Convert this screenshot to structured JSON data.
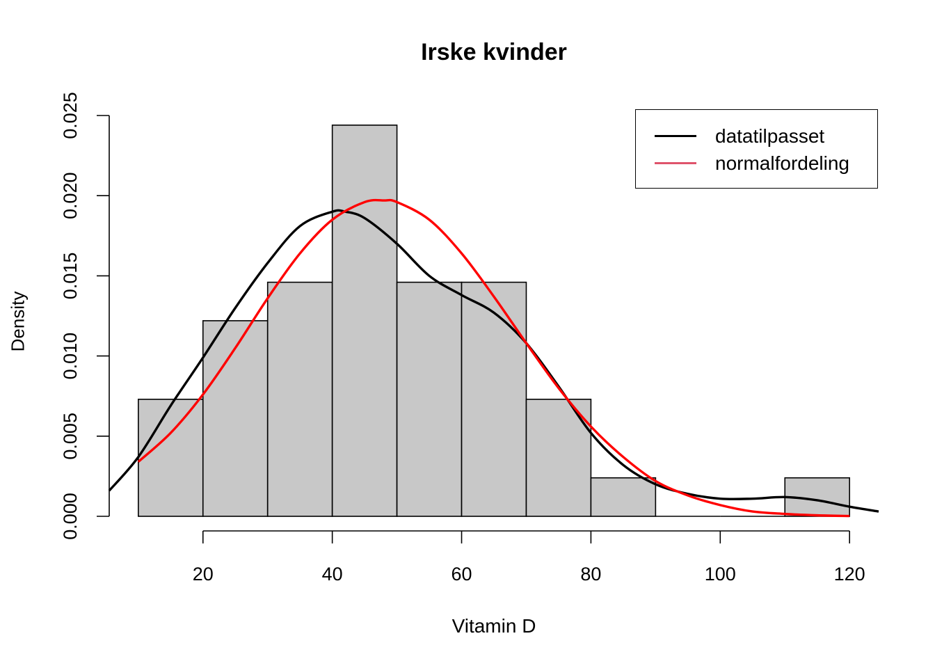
{
  "chart_data": {
    "type": "histogram",
    "title": "Irske kvinder",
    "xlabel": "Vitamin D",
    "ylabel": "Density",
    "xlim": [
      5.5,
      124.5
    ],
    "ylim": [
      0,
      0.025
    ],
    "x_ticks": [
      20,
      40,
      60,
      80,
      100,
      120
    ],
    "y_ticks": [
      "0.000",
      "0.005",
      "0.010",
      "0.015",
      "0.020",
      "0.025"
    ],
    "bins": [
      {
        "from": 10,
        "to": 20,
        "density": 0.0073
      },
      {
        "from": 20,
        "to": 30,
        "density": 0.0122
      },
      {
        "from": 30,
        "to": 40,
        "density": 0.0146
      },
      {
        "from": 40,
        "to": 50,
        "density": 0.0244
      },
      {
        "from": 50,
        "to": 60,
        "density": 0.0146
      },
      {
        "from": 60,
        "to": 70,
        "density": 0.0146
      },
      {
        "from": 70,
        "to": 80,
        "density": 0.0073
      },
      {
        "from": 80,
        "to": 90,
        "density": 0.0024
      },
      {
        "from": 90,
        "to": 100,
        "density": 0
      },
      {
        "from": 100,
        "to": 110,
        "density": 0
      },
      {
        "from": 110,
        "to": 120,
        "density": 0.0024
      }
    ],
    "bar_color": "#C8C8C8",
    "series": [
      {
        "name": "datatilpasset",
        "color": "#000000",
        "x": [
          5.5,
          10,
          15,
          20,
          25,
          30,
          35,
          40,
          42,
          45,
          50,
          55,
          60,
          65,
          70,
          75,
          80,
          85,
          90,
          95,
          100,
          105,
          110,
          115,
          120,
          124.5
        ],
        "y": [
          0.0016,
          0.0037,
          0.0069,
          0.0099,
          0.013,
          0.0158,
          0.0181,
          0.019,
          0.019,
          0.0186,
          0.017,
          0.015,
          0.0138,
          0.0127,
          0.0108,
          0.0081,
          0.0052,
          0.0032,
          0.002,
          0.0014,
          0.0011,
          0.0011,
          0.0012,
          0.001,
          0.0006,
          0.0003
        ]
      },
      {
        "name": "normalfordeling",
        "color": "#FF0000",
        "legend_color": "#DF536B",
        "x": [
          10,
          15,
          20,
          25,
          30,
          35,
          40,
          45,
          48,
          50,
          55,
          60,
          65,
          70,
          75,
          80,
          85,
          90,
          95,
          100,
          105,
          110,
          115,
          120
        ],
        "y": [
          0.0034,
          0.0052,
          0.0076,
          0.0105,
          0.0136,
          0.0164,
          0.0185,
          0.0196,
          0.0197,
          0.0196,
          0.0185,
          0.0164,
          0.0137,
          0.0108,
          0.008,
          0.0056,
          0.0037,
          0.0022,
          0.0013,
          0.0007,
          0.0003,
          0.00015,
          6e-05,
          2e-05
        ]
      }
    ],
    "legend": {
      "position": "top-right",
      "entries": [
        {
          "label": "datatilpasset",
          "color": "#000000"
        },
        {
          "label": "normalfordeling",
          "color": "#DF536B"
        }
      ]
    }
  }
}
